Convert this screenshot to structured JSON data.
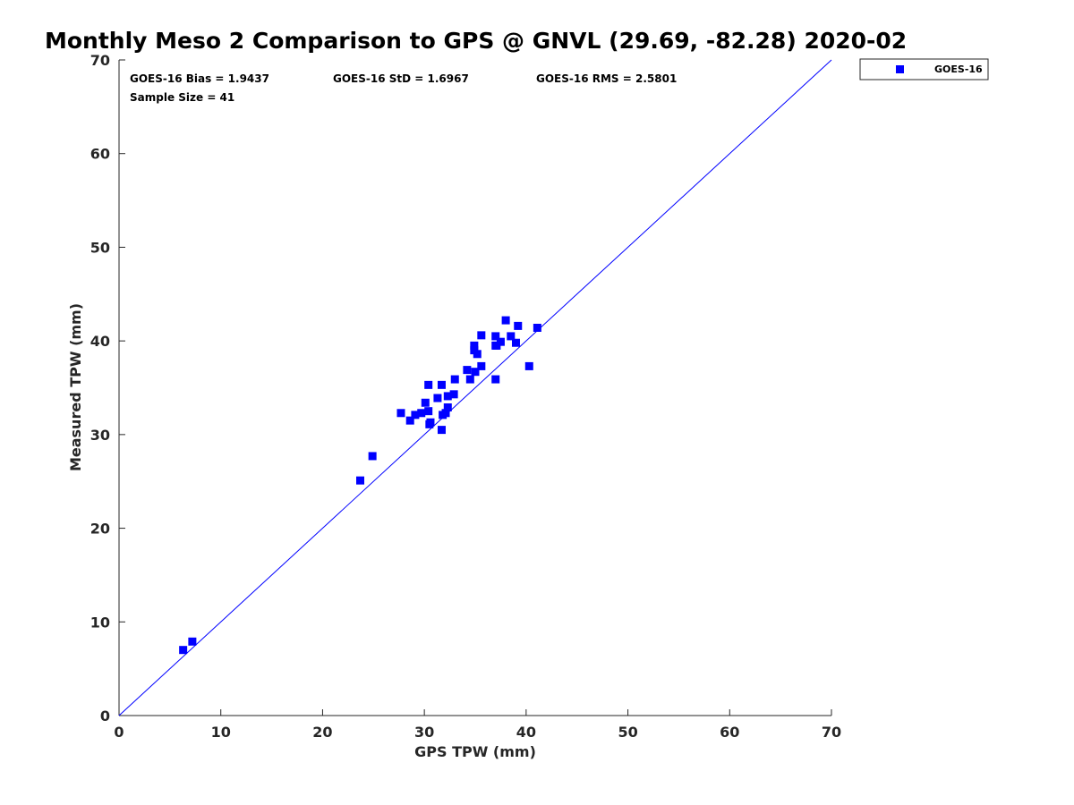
{
  "chart_data": {
    "type": "scatter",
    "title": "Monthly Meso 2 Comparison to GPS @ GNVL (29.69, -82.28) 2020-02",
    "xlabel": "GPS TPW (mm)",
    "ylabel": "Measured TPW (mm)",
    "xlim": [
      0,
      70
    ],
    "ylim": [
      0,
      70
    ],
    "xticks": [
      "0",
      "10",
      "20",
      "30",
      "40",
      "50",
      "60",
      "70"
    ],
    "yticks": [
      "0",
      "10",
      "20",
      "30",
      "40",
      "50",
      "60",
      "70"
    ],
    "grid": false,
    "legend_position": "outside-top-right",
    "reference_line": {
      "from": [
        0,
        0
      ],
      "to": [
        70,
        70
      ],
      "color": "#0000ff"
    },
    "stats": {
      "bias": "GOES-16 Bias = 1.9437",
      "std": "GOES-16 StD = 1.6967",
      "rms": "GOES-16 RMS = 2.5801",
      "sample_size": "Sample Size = 41"
    },
    "series": [
      {
        "name": "GOES-16",
        "color": "#0000ff",
        "marker": "square",
        "points": [
          [
            6.3,
            7.0
          ],
          [
            7.2,
            7.9
          ],
          [
            23.7,
            25.1
          ],
          [
            24.9,
            27.7
          ],
          [
            27.7,
            32.3
          ],
          [
            28.6,
            31.5
          ],
          [
            29.1,
            32.1
          ],
          [
            29.7,
            32.3
          ],
          [
            30.1,
            33.4
          ],
          [
            30.4,
            32.5
          ],
          [
            30.4,
            35.3
          ],
          [
            30.5,
            31.1
          ],
          [
            30.6,
            31.3
          ],
          [
            31.3,
            33.9
          ],
          [
            31.7,
            30.5
          ],
          [
            31.7,
            35.3
          ],
          [
            31.8,
            32.1
          ],
          [
            32.1,
            32.3
          ],
          [
            32.3,
            32.9
          ],
          [
            32.3,
            34.1
          ],
          [
            32.9,
            34.3
          ],
          [
            33.0,
            35.9
          ],
          [
            34.2,
            36.9
          ],
          [
            34.5,
            35.9
          ],
          [
            34.9,
            39.0
          ],
          [
            34.9,
            39.5
          ],
          [
            35.0,
            36.7
          ],
          [
            35.2,
            38.6
          ],
          [
            35.6,
            37.3
          ],
          [
            35.6,
            40.6
          ],
          [
            37.0,
            35.9
          ],
          [
            37.0,
            39.5
          ],
          [
            37.0,
            40.5
          ],
          [
            37.5,
            39.9
          ],
          [
            38.0,
            42.2
          ],
          [
            38.5,
            40.5
          ],
          [
            39.0,
            39.8
          ],
          [
            39.2,
            41.6
          ],
          [
            40.3,
            37.3
          ],
          [
            41.1,
            41.4
          ],
          [
            37.1,
            39.5
          ]
        ]
      }
    ]
  }
}
